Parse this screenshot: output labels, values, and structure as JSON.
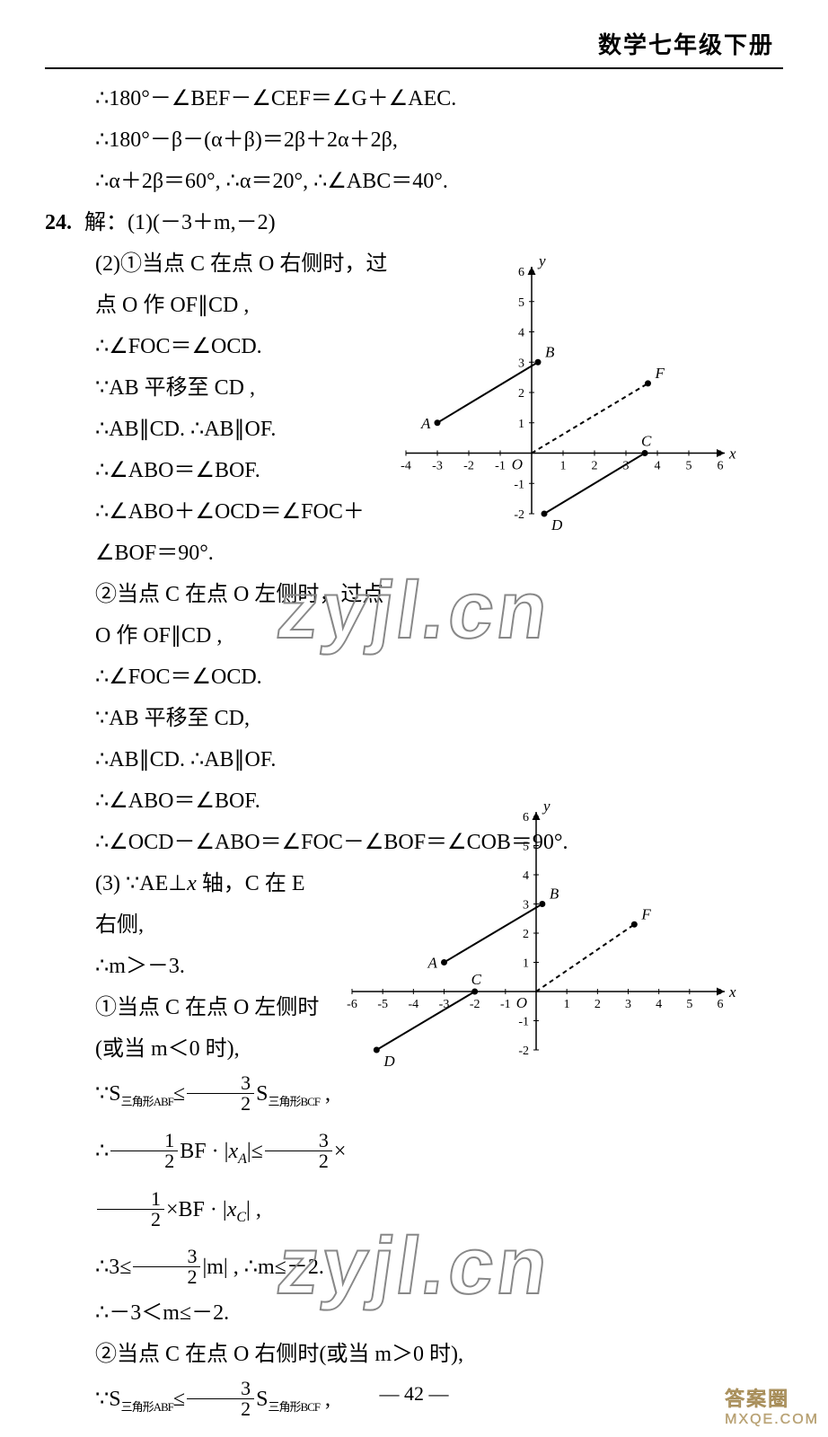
{
  "header": {
    "title": "数学七年级下册"
  },
  "footer": {
    "page_number": "—  42  —"
  },
  "colors": {
    "text": "#000000",
    "background": "#ffffff",
    "watermark_stroke": "#888888",
    "logo_text": "#bda77a",
    "graph_line": "#000000"
  },
  "lines": {
    "l01": "∴180°－∠BEF－∠CEF＝∠G＋∠AEC.",
    "l02": "∴180°－β－(α＋β)＝2β＋2α＋2β,",
    "l03": "∴α＋2β＝60°, ∴α＝20°, ∴∠ABC＝40°.",
    "l04_num": "24.",
    "l04": "解：(1)(－3＋m,－2)",
    "l05": "(2)①当点 C 在点 O 右侧时，过",
    "l06": "点 O 作 OF∥CD ,",
    "l07": "∴∠FOC＝∠OCD.",
    "l08": "∵AB 平移至 CD ,",
    "l09": "∴AB∥CD. ∴AB∥OF.",
    "l10": "∴∠ABO＝∠BOF.",
    "l11": "∴∠ABO＋∠OCD＝∠FOC＋",
    "l12": "∠BOF＝90°.",
    "l13": "②当点 C 在点 O 左侧时，过点",
    "l14": "O 作 OF∥CD ,",
    "l15": "∴∠FOC＝∠OCD.",
    "l16": "∵AB 平移至 CD,",
    "l17": "∴AB∥CD. ∴AB∥OF.",
    "l18": "∴∠ABO＝∠BOF.",
    "l19": "∴∠OCD－∠ABO＝∠FOC－∠BOF＝∠COB＝90°.",
    "l20a": "(3) ∵AE⊥",
    "l20b": " 轴，C 在 E",
    "l21": "右侧,",
    "l22": "∴m＞－3.",
    "l23": "①当点 C 在点 O 左侧时",
    "l24": "(或当 m＜0 时),",
    "pre25": "∵S",
    "tri_abf": "三角形ABF",
    "mid25a": "≤",
    "tri_bcf": "三角形BCF",
    "post25": " ,",
    "l26_pre": "∴",
    "l26_mid": "BF · |",
    "l26_xa": "x",
    "l26_xaSub": "A",
    "l26_post1": "|≤",
    "l26_post2": "×",
    "l27_mid": "×BF · |",
    "l27_xc": "x",
    "l27_xcSub": "C",
    "l27_end": "| ,",
    "l28_pre": "∴3≤",
    "l28_post": "|m| , ∴m≤－2.",
    "l29": "∴－3＜m≤－2.",
    "l30": "②当点 C 在点 O 右侧时(或当 m＞0 时),",
    "pre31": "∵S",
    "post31": " ,",
    "frac32_n": "3",
    "frac32_d": "2",
    "frac12_n": "1",
    "frac12_d": "2",
    "x_it": "x"
  },
  "watermarks": {
    "w1": "zyjl.cn",
    "w2": "zyjl.cn",
    "logo1_l1": "答案圈",
    "logo1_l2": "MXQE.COM"
  },
  "graphs": {
    "g1": {
      "type": "scatter-line",
      "xlim": [
        -4,
        6
      ],
      "ylim": [
        -2,
        6
      ],
      "xticks": [
        -4,
        -3,
        -2,
        -1,
        1,
        2,
        3,
        4,
        5,
        6
      ],
      "yticks": [
        -2,
        -1,
        1,
        2,
        3,
        4,
        5,
        6
      ],
      "axis_labels": {
        "x": "x",
        "y": "y",
        "origin": "O"
      },
      "points": {
        "A": {
          "x": -3,
          "y": 1,
          "label": "A"
        },
        "B": {
          "x": 0.2,
          "y": 3,
          "label": "B"
        },
        "C": {
          "x": 3.6,
          "y": 0,
          "label": "C"
        },
        "D": {
          "x": 0.4,
          "y": -2,
          "label": "D"
        },
        "F": {
          "x": 3.7,
          "y": 2.3,
          "label": "F"
        }
      },
      "solid_segments": [
        [
          "A",
          "B"
        ],
        [
          "C",
          "D"
        ]
      ],
      "dashed_segments": [
        [
          "O",
          "F"
        ]
      ],
      "line_color": "#000000",
      "dash_pattern": "5,4",
      "tick_fontsize": 14,
      "label_fontsize": 17
    },
    "g2": {
      "type": "scatter-line",
      "xlim": [
        -6,
        6
      ],
      "ylim": [
        -2,
        6
      ],
      "xticks": [
        -6,
        -5,
        -4,
        -3,
        -2,
        -1,
        1,
        2,
        3,
        4,
        5,
        6
      ],
      "yticks": [
        -2,
        -1,
        1,
        2,
        3,
        4,
        5,
        6
      ],
      "axis_labels": {
        "x": "x",
        "y": "y",
        "origin": "O"
      },
      "points": {
        "A": {
          "x": -3,
          "y": 1,
          "label": "A"
        },
        "B": {
          "x": 0.2,
          "y": 3,
          "label": "B"
        },
        "C": {
          "x": -2,
          "y": 0,
          "label": "C"
        },
        "D": {
          "x": -5.2,
          "y": -2,
          "label": "D"
        },
        "F": {
          "x": 3.2,
          "y": 2.3,
          "label": "F"
        }
      },
      "solid_segments": [
        [
          "A",
          "B"
        ],
        [
          "C",
          "D"
        ]
      ],
      "dashed_segments": [
        [
          "O",
          "F"
        ]
      ],
      "line_color": "#000000",
      "dash_pattern": "5,4",
      "tick_fontsize": 14,
      "label_fontsize": 17
    }
  }
}
